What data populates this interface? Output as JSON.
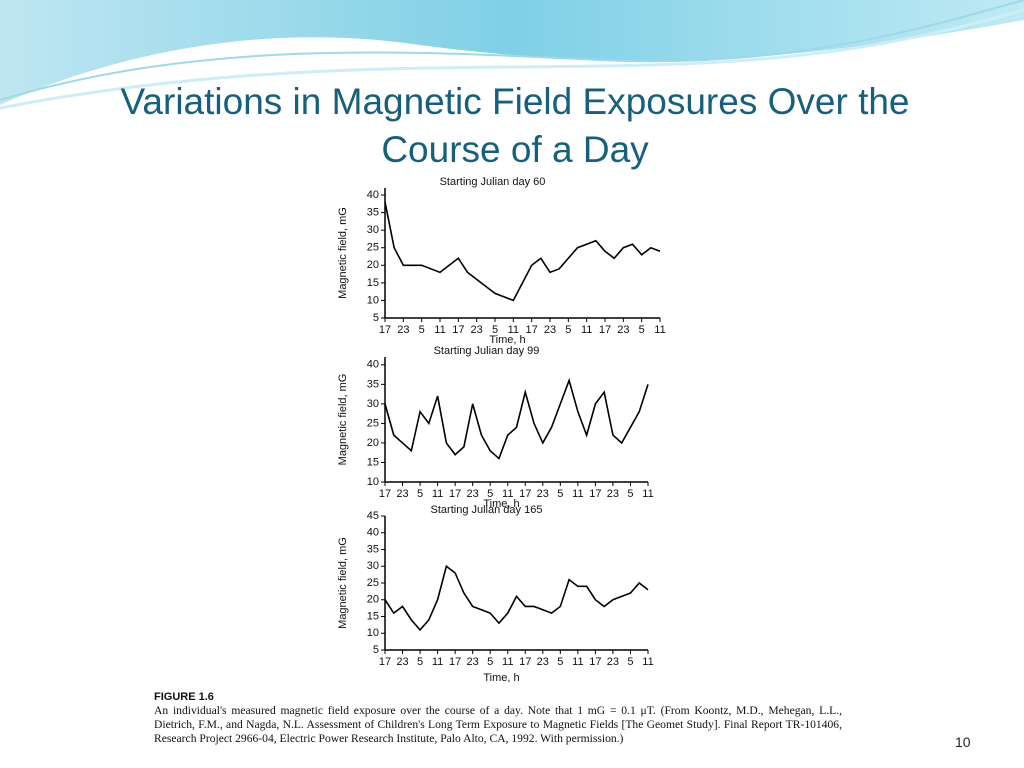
{
  "slide": {
    "title": "Variations in Magnetic Field Exposures Over the Course of a Day",
    "page_number": "10"
  },
  "figure": {
    "label": "FIGURE 1.6",
    "caption": "An individual's measured magnetic field exposure over the course of a day. Note that 1 mG = 0.1 μT. (From Koontz, M.D., Mehegan, L.L., Dietrich, F.M., and Nagda, N.L. Assessment of Children's Long Term Exposure to Magnetic Fields [The Geomet Study]. Final Report TR-101406, Research Project 2966-04, Electric Power Research Institute, Palo Alto, CA, 1992. With permission.)"
  },
  "chart_data": [
    {
      "type": "line",
      "title": "Starting Julian day 60",
      "y_label": "Magnetic field, mG",
      "x_label": "Time, h",
      "color": "#000000",
      "x": [
        0,
        3,
        6,
        9,
        12,
        15,
        18,
        21,
        24,
        27,
        30,
        33,
        36,
        39,
        42,
        45,
        48,
        51,
        54,
        57,
        60,
        63,
        66,
        69,
        72,
        75,
        78,
        81,
        84,
        87,
        90
      ],
      "values": [
        38,
        25,
        20,
        20,
        20,
        19,
        18,
        20,
        22,
        18,
        16,
        14,
        12,
        11,
        10,
        15,
        20,
        22,
        18,
        19,
        22,
        25,
        26,
        27,
        24,
        22,
        25,
        26,
        23,
        25,
        24
      ],
      "xlim": [
        0,
        90
      ],
      "ylim": [
        5,
        42
      ],
      "yticks": [
        5,
        10,
        15,
        20,
        25,
        30,
        35,
        40
      ],
      "xticks": [
        {
          "value": 0,
          "label": "17"
        },
        {
          "value": 6,
          "label": "23"
        },
        {
          "value": 12,
          "label": "5"
        },
        {
          "value": 18,
          "label": "11"
        },
        {
          "value": 24,
          "label": "17"
        },
        {
          "value": 30,
          "label": "23"
        },
        {
          "value": 36,
          "label": "5"
        },
        {
          "value": 42,
          "label": "11"
        },
        {
          "value": 48,
          "label": "17"
        },
        {
          "value": 54,
          "label": "23"
        },
        {
          "value": 60,
          "label": "5"
        },
        {
          "value": 66,
          "label": "11"
        },
        {
          "value": 72,
          "label": "17"
        },
        {
          "value": 78,
          "label": "23"
        },
        {
          "value": 84,
          "label": "5"
        },
        {
          "value": 90,
          "label": "11"
        }
      ]
    },
    {
      "type": "line",
      "title": "Starting Julian day 99",
      "y_label": "Magnetic field, mG",
      "x_label": "Time, h",
      "color": "#000000",
      "x": [
        0,
        3,
        6,
        9,
        12,
        15,
        18,
        21,
        24,
        27,
        30,
        33,
        36,
        39,
        42,
        45,
        48,
        51,
        54,
        57,
        60,
        63,
        66,
        69,
        72,
        75,
        78,
        81,
        84,
        87,
        90
      ],
      "values": [
        30,
        22,
        20,
        18,
        28,
        25,
        32,
        20,
        17,
        19,
        30,
        22,
        18,
        16,
        22,
        24,
        33,
        25,
        20,
        24,
        30,
        36,
        28,
        22,
        30,
        33,
        22,
        20,
        24,
        28,
        35
      ],
      "xlim": [
        0,
        90
      ],
      "ylim": [
        10,
        42
      ],
      "yticks": [
        10,
        15,
        20,
        25,
        30,
        35,
        40
      ],
      "xticks": [
        {
          "value": 0,
          "label": "17"
        },
        {
          "value": 6,
          "label": "23"
        },
        {
          "value": 12,
          "label": "5"
        },
        {
          "value": 18,
          "label": "11"
        },
        {
          "value": 24,
          "label": "17"
        },
        {
          "value": 30,
          "label": "23"
        },
        {
          "value": 36,
          "label": "5"
        },
        {
          "value": 42,
          "label": "11"
        },
        {
          "value": 48,
          "label": "17"
        },
        {
          "value": 54,
          "label": "23"
        },
        {
          "value": 60,
          "label": "5"
        },
        {
          "value": 66,
          "label": "11"
        },
        {
          "value": 72,
          "label": "17"
        },
        {
          "value": 78,
          "label": "23"
        },
        {
          "value": 84,
          "label": "5"
        },
        {
          "value": 90,
          "label": "11"
        }
      ]
    },
    {
      "type": "line",
      "title": "Starting Julian day 165",
      "y_label": "Magnetic field, mG",
      "x_label": "Time, h",
      "color": "#000000",
      "x": [
        0,
        3,
        6,
        9,
        12,
        15,
        18,
        21,
        24,
        27,
        30,
        33,
        36,
        39,
        42,
        45,
        48,
        51,
        54,
        57,
        60,
        63,
        66,
        69,
        72,
        75,
        78,
        81,
        84,
        87,
        90
      ],
      "values": [
        20,
        16,
        18,
        14,
        11,
        14,
        20,
        30,
        28,
        22,
        18,
        17,
        16,
        13,
        16,
        21,
        18,
        18,
        17,
        16,
        18,
        26,
        24,
        24,
        20,
        18,
        20,
        21,
        22,
        25,
        23
      ],
      "xlim": [
        0,
        90
      ],
      "ylim": [
        5,
        45
      ],
      "yticks": [
        5,
        10,
        15,
        20,
        25,
        30,
        35,
        40,
        45
      ],
      "xticks": [
        {
          "value": 0,
          "label": "17"
        },
        {
          "value": 6,
          "label": "23"
        },
        {
          "value": 12,
          "label": "5"
        },
        {
          "value": 18,
          "label": "11"
        },
        {
          "value": 24,
          "label": "17"
        },
        {
          "value": 30,
          "label": "23"
        },
        {
          "value": 36,
          "label": "5"
        },
        {
          "value": 42,
          "label": "11"
        },
        {
          "value": 48,
          "label": "17"
        },
        {
          "value": 54,
          "label": "23"
        },
        {
          "value": 60,
          "label": "5"
        },
        {
          "value": 66,
          "label": "11"
        },
        {
          "value": 72,
          "label": "17"
        },
        {
          "value": 78,
          "label": "23"
        },
        {
          "value": 84,
          "label": "5"
        },
        {
          "value": 90,
          "label": "11"
        }
      ]
    }
  ]
}
